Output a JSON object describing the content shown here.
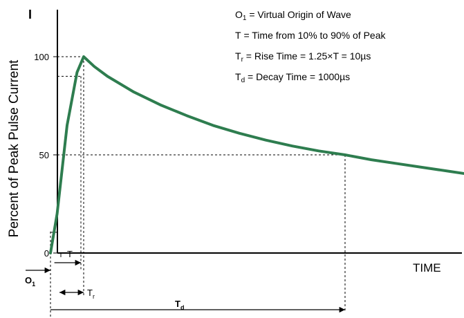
{
  "chart_data": {
    "type": "line",
    "ylabel": "Percent of Peak Pulse Current",
    "y_axis_symbol": "I",
    "xlabel": "TIME",
    "yticks": [
      {
        "value": 0,
        "label": "0"
      },
      {
        "value": 50,
        "label": "50"
      },
      {
        "value": 100,
        "label": "100"
      }
    ],
    "ylim": [
      0,
      120
    ],
    "x_units": "µs",
    "xlim": [
      -2,
      1550
    ],
    "grid": false,
    "series": [
      {
        "color": "#2e7d4f",
        "x": [
          0,
          2,
          5,
          8,
          10,
          50,
          100,
          200,
          300,
          400,
          500,
          600,
          700,
          800,
          900,
          1000,
          1100,
          1200,
          1300,
          1400,
          1500,
          1550
        ],
        "y": [
          0,
          20,
          65,
          92,
          100,
          95,
          90,
          82,
          75.5,
          70,
          65,
          61,
          57.5,
          54.5,
          52,
          50,
          47.5,
          45.5,
          43.5,
          41.5,
          39.5,
          38.5
        ]
      }
    ],
    "annotations": {
      "O1": {
        "main": "O",
        "sub": "1"
      },
      "T": {
        "main": "T",
        "sub": ""
      },
      "Tr": {
        "main": "T",
        "sub": "r"
      },
      "Td": {
        "main": "T",
        "sub": "d"
      }
    },
    "legend": [
      {
        "main": "O",
        "sub": "1",
        "text": " = Virtual Origin of Wave"
      },
      {
        "main": "T",
        "sub": "",
        "text": " = Time from 10% to 90% of Peak"
      },
      {
        "main": "T",
        "sub": "r",
        "text": " = Rise Time = 1.25×T = 10µs"
      },
      {
        "main": "T",
        "sub": "d",
        "text": " = Decay Time = 1000µs"
      }
    ]
  }
}
